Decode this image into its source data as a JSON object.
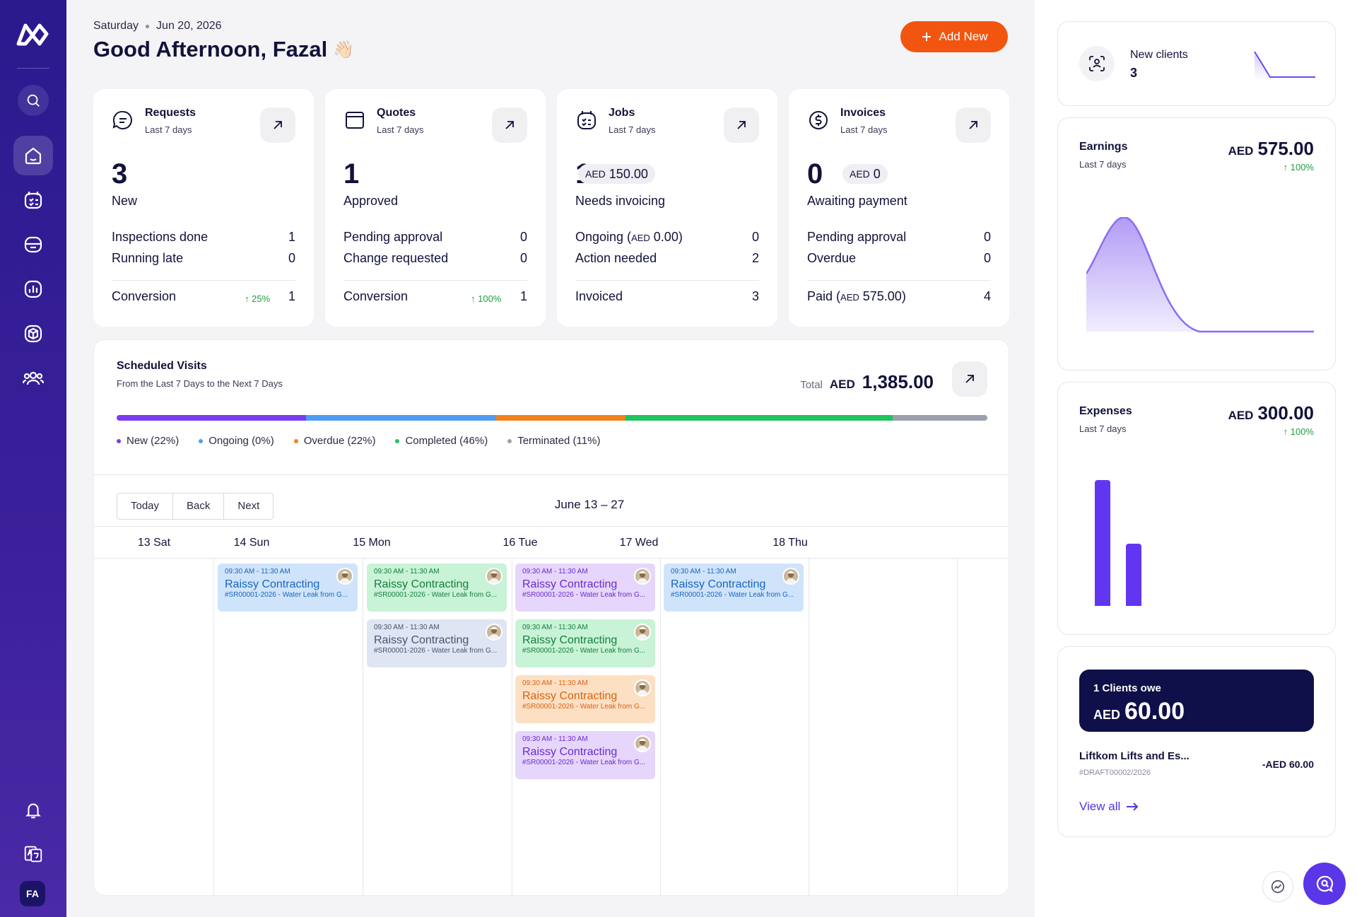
{
  "header": {
    "day": "Saturday",
    "date": "Jun 20, 2026",
    "greeting": "Good Afternoon, Fazal",
    "wave": "👋🏻",
    "add_new": "Add New"
  },
  "user": {
    "initials": "FA"
  },
  "sidebar": {
    "items": [
      {
        "name": "search-icon"
      },
      {
        "name": "home-icon",
        "active": true
      },
      {
        "name": "schedule-icon"
      },
      {
        "name": "inbox-icon"
      },
      {
        "name": "reports-icon"
      },
      {
        "name": "products-icon"
      },
      {
        "name": "clients-icon"
      },
      {
        "name": "bell-icon"
      },
      {
        "name": "translate-icon"
      }
    ]
  },
  "cards": [
    {
      "title": "Requests",
      "sub": "Last 7 days",
      "big": "3",
      "big_label": "New",
      "rows": [
        {
          "label": "Inspections done",
          "value": "1"
        },
        {
          "label": "Running late",
          "value": "0"
        }
      ],
      "footer_label": "Conversion",
      "footer_pct": "↑ 25%",
      "footer_value": "1"
    },
    {
      "title": "Quotes",
      "sub": "Last 7 days",
      "big": "1",
      "big_label": "Approved",
      "rows": [
        {
          "label": "Pending approval",
          "value": "0"
        },
        {
          "label": "Change requested",
          "value": "0"
        }
      ],
      "footer_label": "Conversion",
      "footer_pct": "↑ 100%",
      "footer_value": "1"
    },
    {
      "title": "Jobs",
      "sub": "Last 7 days",
      "big": "1",
      "big_label": "Needs invoicing",
      "pill_cur": "AED",
      "pill_val": "150.00",
      "rows": [
        {
          "label": "Ongoing (",
          "cur": "AED",
          "label_tail": " 0.00)",
          "value": "0"
        },
        {
          "label": "Action needed",
          "value": "2"
        }
      ],
      "footer_label": "Invoiced",
      "footer_value": "3"
    },
    {
      "title": "Invoices",
      "sub": "Last 7 days",
      "big": "0",
      "big_label": "Awaiting payment",
      "pill_cur": "AED",
      "pill_val": "0",
      "rows": [
        {
          "label": "Pending approval",
          "value": "0"
        },
        {
          "label": "Overdue",
          "value": "0"
        }
      ],
      "footer_label": "Paid (",
      "footer_cur": "AED",
      "footer_tail": " 575.00)",
      "footer_value": "4"
    }
  ],
  "schedule": {
    "title": "Scheduled Visits",
    "sub": "From the Last 7 Days to the Next 7 Days",
    "total_label": "Total",
    "total_cur": "AED",
    "total_amt": "1,385.00",
    "segments": [
      {
        "label": "New (22%)",
        "pct": 22,
        "color": "#7a3cf0"
      },
      {
        "label": "Ongoing (0%)",
        "pct": 0,
        "color": "#4f9cf5"
      },
      {
        "label": "Overdue (22%)",
        "pct": 22,
        "color": "#f2811b"
      },
      {
        "label": "Completed (46%)",
        "pct": 46,
        "color": "#1fc45e"
      },
      {
        "label": "Terminated (11%)",
        "pct": 11,
        "color": "#9aa1ad"
      }
    ],
    "bar_widths": [
      22,
      22,
      15,
      31,
      11
    ],
    "nav": {
      "today": "Today",
      "back": "Back",
      "next": "Next"
    },
    "range": "June 13 – 27",
    "days": [
      "13 Sat",
      "14 Sun",
      "15 Mon",
      "16 Tue",
      "17 Wed",
      "18 Thu"
    ],
    "event_time": "09:30 AM - 11:30 AM",
    "event_name": "Raissy Contracting",
    "event_desc": "#SR00001-2026 - Water Leak from G..."
  },
  "right": {
    "new_clients": {
      "title": "New clients",
      "value": "3"
    },
    "earnings": {
      "title": "Earnings",
      "sub": "Last 7 days",
      "cur": "AED",
      "amount": "575.00",
      "pct": "↑ 100%"
    },
    "expenses": {
      "title": "Expenses",
      "sub": "Last 7 days",
      "cur": "AED",
      "amount": "300.00",
      "pct": "↑ 100%"
    },
    "owe": {
      "title": "1 Clients owe",
      "cur": "AED",
      "amount": "60.00",
      "client": "Liftkom Lifts and Es...",
      "ref": "#DRAFT00002/2026",
      "client_amt": "-AED 60.00",
      "view_all": "View all"
    }
  },
  "colors": {
    "accent": "#f2550f",
    "brand": "#3a1f9a",
    "chart_purple": "#6236f0"
  }
}
